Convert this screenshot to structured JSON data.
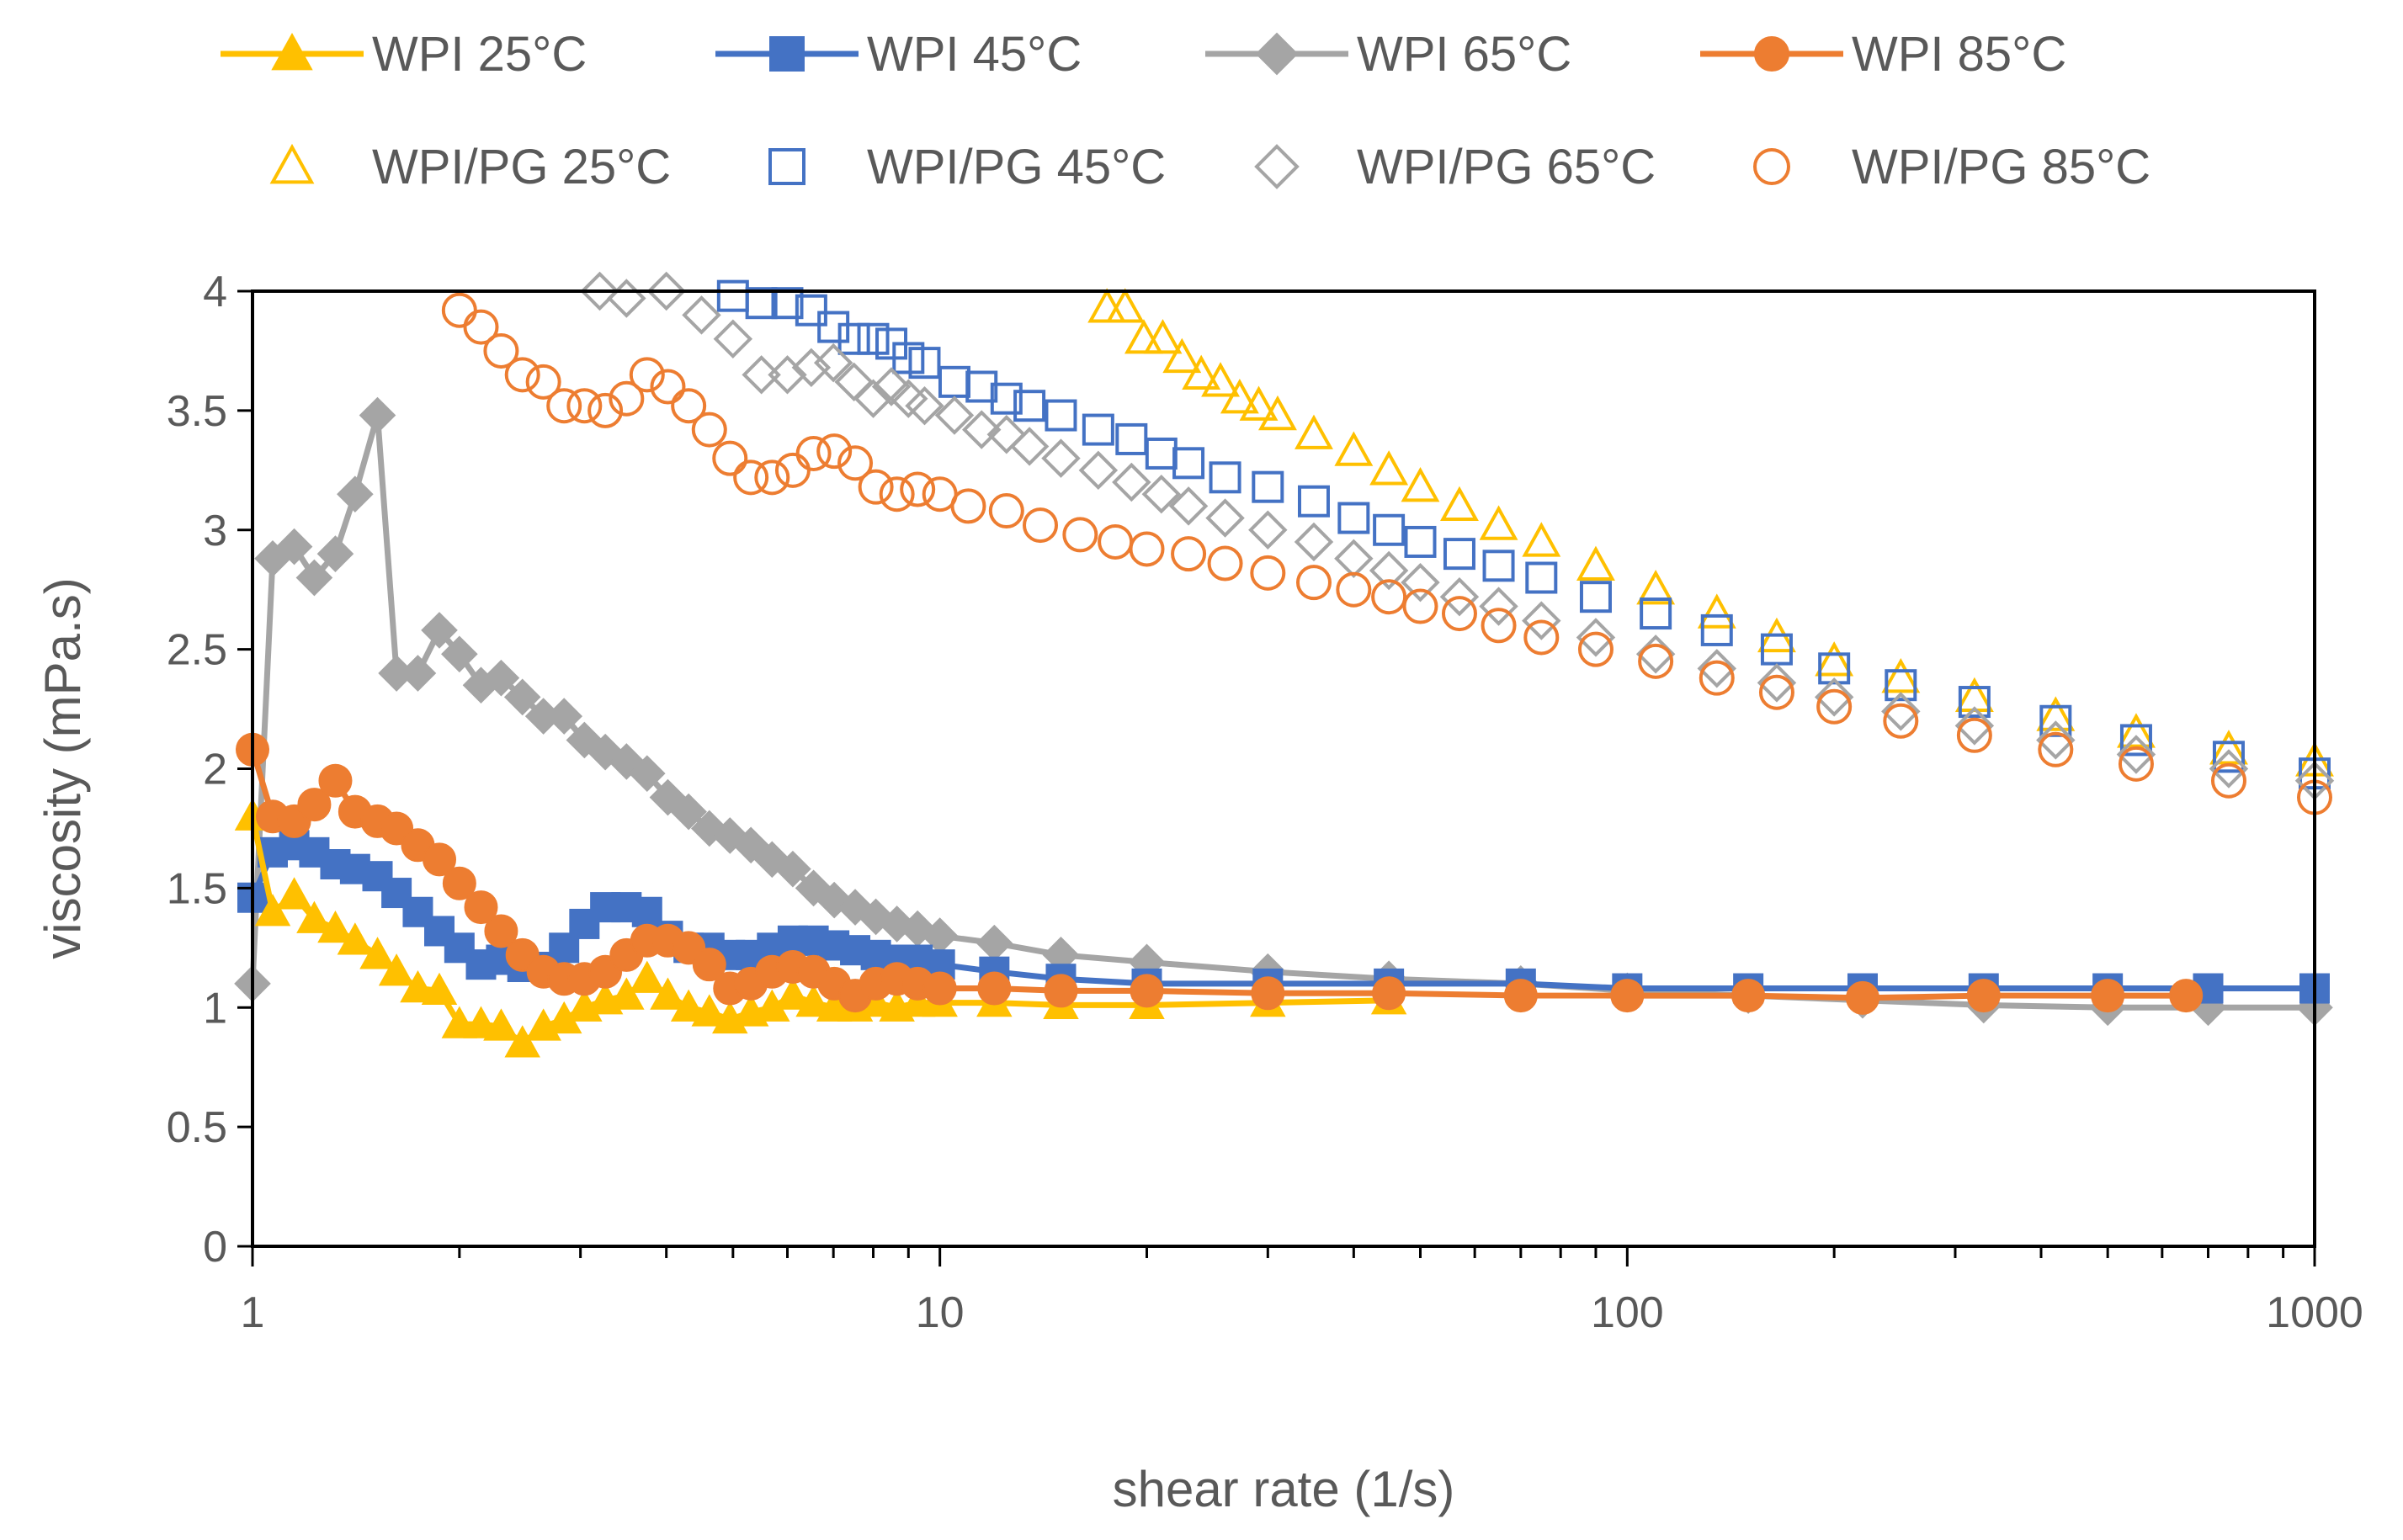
{
  "chart_data": {
    "type": "scatter",
    "title": "",
    "xlabel": "shear rate (1/s)",
    "ylabel": "viscosity (mPa.s)",
    "x_scale": "log",
    "xlim": [
      1,
      1000
    ],
    "ylim": [
      0,
      4
    ],
    "x_ticks": [
      1,
      10,
      100,
      1000
    ],
    "x_tick_labels": [
      "1",
      "10",
      "100",
      "1000"
    ],
    "y_ticks": [
      0,
      0.5,
      1,
      1.5,
      2,
      2.5,
      3,
      3.5,
      4
    ],
    "y_tick_labels": [
      "0",
      "0.5",
      "1",
      "1.5",
      "2",
      "2.5",
      "3",
      "3.5",
      "4"
    ],
    "grid": false,
    "legend_position": "top",
    "series": [
      {
        "name": "WPI 25°C",
        "color": "#FFC000",
        "marker": "triangle",
        "filled": true,
        "line": true,
        "x": [
          1,
          1.07,
          1.15,
          1.23,
          1.32,
          1.41,
          1.52,
          1.62,
          1.74,
          1.87,
          2,
          2.15,
          2.3,
          2.47,
          2.65,
          2.84,
          3.04,
          3.26,
          3.5,
          3.75,
          4.02,
          4.31,
          4.62,
          4.95,
          5.31,
          5.7,
          6.11,
          6.55,
          7.02,
          7.53,
          8.07,
          8.66,
          9.28,
          10,
          12,
          15,
          20,
          30,
          45
        ],
        "y": [
          1.8,
          1.4,
          1.47,
          1.37,
          1.33,
          1.28,
          1.22,
          1.15,
          1.08,
          1.07,
          0.93,
          0.93,
          0.92,
          0.85,
          0.92,
          0.95,
          1.0,
          1.03,
          1.05,
          1.12,
          1.05,
          1.0,
          0.98,
          0.95,
          0.98,
          1.0,
          1.05,
          1.02,
          1.0,
          1.0,
          1.02,
          1.0,
          1.02,
          1.02,
          1.02,
          1.01,
          1.01,
          1.02,
          1.03
        ]
      },
      {
        "name": "WPI 45°C",
        "color": "#4472C4",
        "marker": "square",
        "filled": true,
        "line": true,
        "x": [
          1,
          1.07,
          1.15,
          1.23,
          1.32,
          1.41,
          1.52,
          1.62,
          1.74,
          1.87,
          2,
          2.15,
          2.3,
          2.47,
          2.65,
          2.84,
          3.04,
          3.26,
          3.5,
          3.75,
          4.02,
          4.31,
          4.62,
          4.95,
          5.31,
          5.7,
          6.11,
          6.55,
          7.02,
          7.53,
          8.07,
          8.66,
          9.28,
          10,
          12,
          15,
          20,
          30,
          45,
          70,
          100,
          150,
          220,
          330,
          500,
          700,
          1000
        ],
        "y": [
          1.46,
          1.65,
          1.68,
          1.65,
          1.6,
          1.58,
          1.55,
          1.48,
          1.4,
          1.32,
          1.25,
          1.18,
          1.2,
          1.17,
          1.17,
          1.25,
          1.35,
          1.42,
          1.42,
          1.4,
          1.3,
          1.25,
          1.25,
          1.22,
          1.22,
          1.25,
          1.28,
          1.28,
          1.26,
          1.24,
          1.22,
          1.2,
          1.2,
          1.18,
          1.15,
          1.12,
          1.1,
          1.1,
          1.1,
          1.1,
          1.08,
          1.08,
          1.08,
          1.08,
          1.08,
          1.08,
          1.08
        ]
      },
      {
        "name": "WPI 65°C",
        "color": "#A5A5A5",
        "marker": "diamond",
        "filled": true,
        "line": true,
        "x": [
          1,
          1.07,
          1.15,
          1.23,
          1.32,
          1.41,
          1.52,
          1.62,
          1.74,
          1.87,
          2,
          2.15,
          2.3,
          2.47,
          2.65,
          2.84,
          3.04,
          3.26,
          3.5,
          3.75,
          4.02,
          4.31,
          4.62,
          4.95,
          5.31,
          5.7,
          6.11,
          6.55,
          7.02,
          7.53,
          8.07,
          8.66,
          9.28,
          10,
          12,
          15,
          20,
          30,
          45,
          70,
          100,
          150,
          220,
          330,
          500,
          700,
          1000
        ],
        "y": [
          1.1,
          2.88,
          2.93,
          2.8,
          2.9,
          3.15,
          3.48,
          2.4,
          2.4,
          2.58,
          2.48,
          2.35,
          2.38,
          2.3,
          2.22,
          2.22,
          2.12,
          2.07,
          2.03,
          1.98,
          1.88,
          1.82,
          1.75,
          1.72,
          1.68,
          1.62,
          1.58,
          1.5,
          1.45,
          1.42,
          1.38,
          1.35,
          1.33,
          1.3,
          1.27,
          1.22,
          1.19,
          1.15,
          1.12,
          1.1,
          1.07,
          1.05,
          1.03,
          1.01,
          1.0,
          1.0,
          1.0
        ]
      },
      {
        "name": "WPI 85°C",
        "color": "#ED7D31",
        "marker": "circle",
        "filled": true,
        "line": true,
        "x": [
          1,
          1.07,
          1.15,
          1.23,
          1.32,
          1.41,
          1.52,
          1.62,
          1.74,
          1.87,
          2,
          2.15,
          2.3,
          2.47,
          2.65,
          2.84,
          3.04,
          3.26,
          3.5,
          3.75,
          4.02,
          4.31,
          4.62,
          4.95,
          5.31,
          5.7,
          6.11,
          6.55,
          7.02,
          7.53,
          8.07,
          8.66,
          9.28,
          10,
          12,
          15,
          20,
          30,
          45,
          70,
          100,
          150,
          220,
          330,
          500,
          650
        ],
        "y": [
          2.08,
          1.8,
          1.78,
          1.85,
          1.95,
          1.82,
          1.78,
          1.75,
          1.68,
          1.62,
          1.52,
          1.42,
          1.32,
          1.22,
          1.15,
          1.12,
          1.12,
          1.15,
          1.22,
          1.28,
          1.28,
          1.25,
          1.18,
          1.08,
          1.1,
          1.15,
          1.17,
          1.15,
          1.1,
          1.05,
          1.1,
          1.12,
          1.1,
          1.08,
          1.08,
          1.07,
          1.07,
          1.06,
          1.06,
          1.05,
          1.05,
          1.05,
          1.04,
          1.05,
          1.05,
          1.05
        ]
      },
      {
        "name": "WPI/PG 25°C",
        "color": "#FFC000",
        "marker": "triangle",
        "filled": false,
        "line": false,
        "x": [
          17.5,
          18.6,
          19.8,
          21.1,
          22.5,
          24,
          25.6,
          27.3,
          29.1,
          31,
          35,
          40,
          45,
          50,
          57,
          65,
          75,
          90,
          110,
          135,
          165,
          200,
          250,
          320,
          420,
          550,
          750,
          1000
        ],
        "y": [
          3.93,
          3.93,
          3.8,
          3.8,
          3.72,
          3.65,
          3.62,
          3.55,
          3.52,
          3.48,
          3.4,
          3.33,
          3.25,
          3.18,
          3.1,
          3.02,
          2.95,
          2.85,
          2.75,
          2.65,
          2.55,
          2.45,
          2.38,
          2.3,
          2.22,
          2.15,
          2.08,
          2.03
        ]
      },
      {
        "name": "WPI/PG 45°C",
        "color": "#4472C4",
        "marker": "square",
        "filled": false,
        "line": false,
        "x": [
          5,
          5.5,
          6,
          6.5,
          7,
          7.5,
          8,
          8.5,
          9,
          9.5,
          10.5,
          11.5,
          12.5,
          13.5,
          15,
          17,
          19,
          21,
          23,
          26,
          30,
          35,
          40,
          45,
          50,
          57,
          65,
          75,
          90,
          110,
          135,
          165,
          200,
          250,
          320,
          420,
          550,
          750,
          1000
        ],
        "y": [
          3.98,
          3.95,
          3.95,
          3.92,
          3.85,
          3.8,
          3.8,
          3.78,
          3.72,
          3.7,
          3.62,
          3.6,
          3.55,
          3.52,
          3.48,
          3.42,
          3.38,
          3.32,
          3.28,
          3.22,
          3.18,
          3.12,
          3.05,
          3.0,
          2.95,
          2.9,
          2.85,
          2.8,
          2.72,
          2.65,
          2.58,
          2.5,
          2.42,
          2.35,
          2.28,
          2.2,
          2.12,
          2.05,
          1.98
        ]
      },
      {
        "name": "WPI/PG 65°C",
        "color": "#A5A5A5",
        "marker": "diamond",
        "filled": false,
        "line": false,
        "x": [
          3.2,
          3.5,
          4,
          4.5,
          5,
          5.5,
          6,
          6.5,
          7,
          7.5,
          8,
          8.5,
          9,
          9.5,
          10.5,
          11.5,
          12.5,
          13.5,
          15,
          17,
          19,
          21,
          23,
          26,
          30,
          35,
          40,
          45,
          50,
          57,
          65,
          75,
          90,
          110,
          135,
          165,
          200,
          250,
          320,
          420,
          550,
          750,
          1000
        ],
        "y": [
          4.0,
          3.97,
          4.0,
          3.9,
          3.8,
          3.65,
          3.65,
          3.68,
          3.7,
          3.62,
          3.55,
          3.6,
          3.55,
          3.52,
          3.48,
          3.42,
          3.4,
          3.35,
          3.3,
          3.25,
          3.2,
          3.15,
          3.1,
          3.05,
          3.0,
          2.95,
          2.88,
          2.83,
          2.78,
          2.72,
          2.68,
          2.62,
          2.55,
          2.48,
          2.42,
          2.36,
          2.3,
          2.24,
          2.18,
          2.12,
          2.06,
          2.0,
          1.95
        ]
      },
      {
        "name": "WPI/PG 85°C",
        "color": "#ED7D31",
        "marker": "circle",
        "filled": false,
        "line": false,
        "x": [
          2,
          2.15,
          2.3,
          2.47,
          2.65,
          2.84,
          3.04,
          3.26,
          3.5,
          3.75,
          4.02,
          4.31,
          4.62,
          4.95,
          5.31,
          5.7,
          6.11,
          6.55,
          7.02,
          7.53,
          8.07,
          8.66,
          9.28,
          10,
          11,
          12.5,
          14,
          16,
          18,
          20,
          23,
          26,
          30,
          35,
          40,
          45,
          50,
          57,
          65,
          75,
          90,
          110,
          135,
          165,
          200,
          250,
          320,
          420,
          550,
          750,
          1000
        ],
        "y": [
          3.92,
          3.85,
          3.75,
          3.65,
          3.62,
          3.52,
          3.52,
          3.5,
          3.55,
          3.65,
          3.6,
          3.52,
          3.42,
          3.3,
          3.22,
          3.22,
          3.25,
          3.32,
          3.33,
          3.28,
          3.18,
          3.15,
          3.17,
          3.15,
          3.1,
          3.08,
          3.02,
          2.98,
          2.95,
          2.92,
          2.9,
          2.86,
          2.82,
          2.78,
          2.75,
          2.72,
          2.68,
          2.65,
          2.6,
          2.55,
          2.5,
          2.45,
          2.38,
          2.32,
          2.26,
          2.2,
          2.14,
          2.08,
          2.02,
          1.95,
          1.88
        ]
      }
    ]
  }
}
